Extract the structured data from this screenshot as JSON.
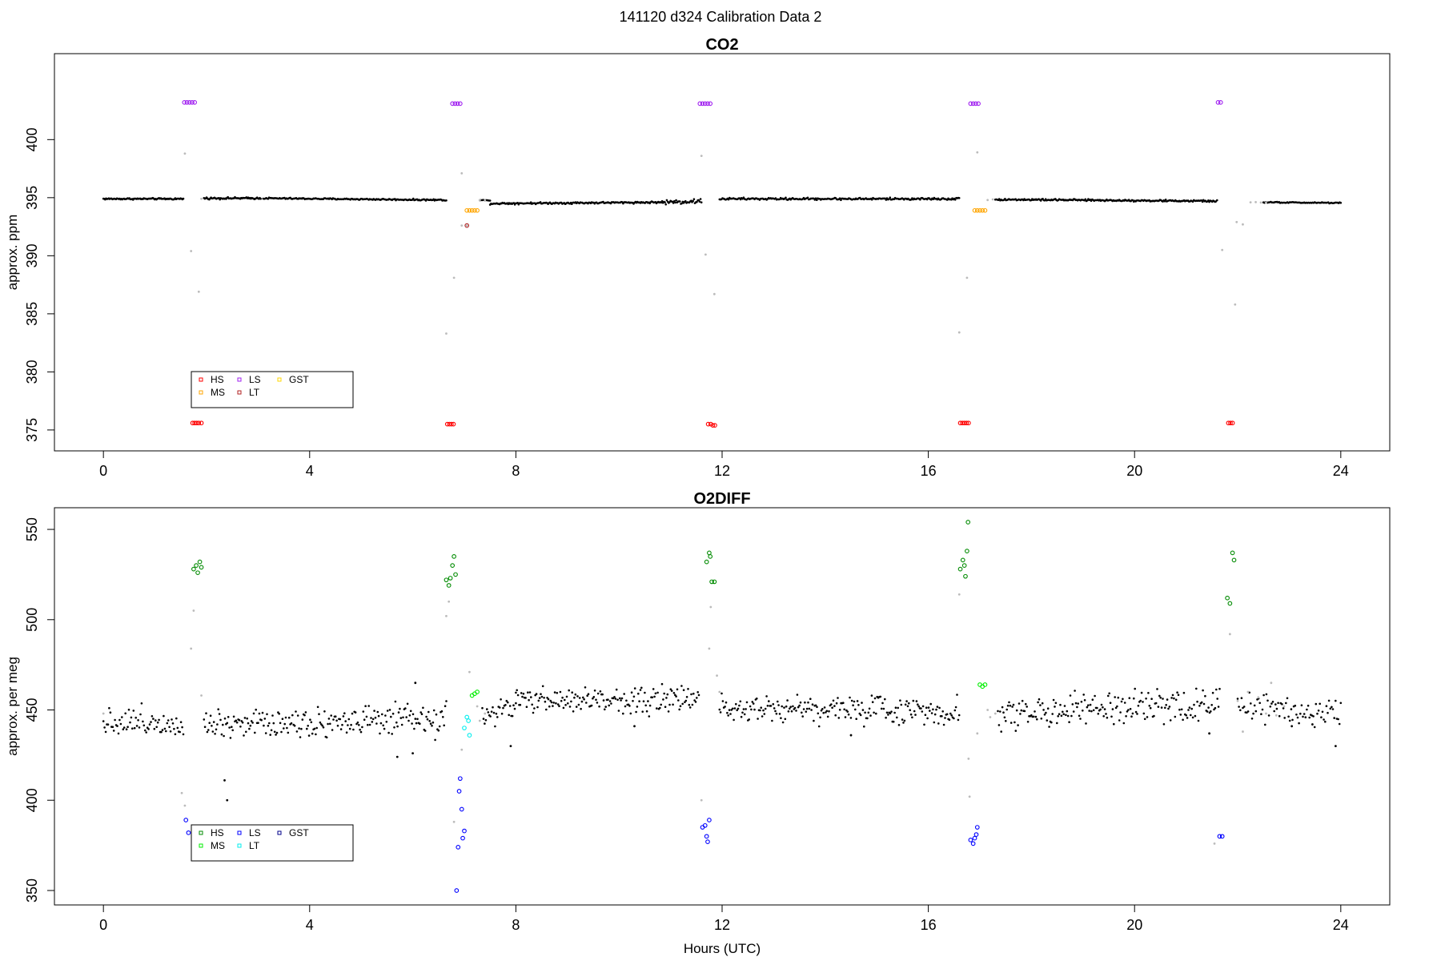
{
  "figure": {
    "title": "141120   d324   Calibration Data 2"
  },
  "chart_data": [
    {
      "type": "scatter",
      "title": "CO2",
      "xlabel": "",
      "ylabel": "approx. ppm",
      "xlim": [
        -0.95,
        24.95
      ],
      "ylim": [
        373.2,
        407.4
      ],
      "xticks": [
        0,
        4,
        8,
        12,
        16,
        20,
        24
      ],
      "yticks": [
        375,
        380,
        385,
        390,
        395,
        400
      ],
      "grid": false,
      "legend": {
        "placement": "bottom-left",
        "entries": [
          {
            "label": "HS",
            "color": "#ff0000"
          },
          {
            "label": "MS",
            "color": "#ffa500"
          },
          {
            "label": "LS",
            "color": "#a020f0"
          },
          {
            "label": "LT",
            "color": "#b22222"
          },
          {
            "label": "GST",
            "color": "#ffd700"
          }
        ]
      },
      "ambient": {
        "color": "#000000",
        "segments": [
          {
            "x0": 0.0,
            "x1": 1.55,
            "y0": 394.9,
            "y1": 394.9,
            "amp": 0.05,
            "n": 90
          },
          {
            "x0": 1.95,
            "x1": 3.05,
            "y0": 394.95,
            "y1": 394.95,
            "amp": 0.06,
            "n": 65
          },
          {
            "x0": 3.1,
            "x1": 6.65,
            "y0": 394.95,
            "y1": 394.8,
            "amp": 0.05,
            "n": 190
          },
          {
            "x0": 7.3,
            "x1": 7.5,
            "y0": 394.8,
            "y1": 394.75,
            "amp": 0.03,
            "n": 10
          },
          {
            "x0": 7.5,
            "x1": 10.8,
            "y0": 394.5,
            "y1": 394.6,
            "amp": 0.06,
            "n": 180
          },
          {
            "x0": 10.8,
            "x1": 11.6,
            "y0": 394.6,
            "y1": 394.7,
            "amp": 0.15,
            "n": 45
          },
          {
            "x0": 11.95,
            "x1": 16.6,
            "y0": 394.9,
            "y1": 394.9,
            "amp": 0.07,
            "n": 240
          },
          {
            "x0": 17.3,
            "x1": 21.6,
            "y0": 394.85,
            "y1": 394.7,
            "amp": 0.06,
            "n": 230
          },
          {
            "x0": 22.5,
            "x1": 24.0,
            "y0": 394.6,
            "y1": 394.55,
            "amp": 0.04,
            "n": 75
          }
        ]
      },
      "transition": {
        "color": "#bbbbbb",
        "points": [
          [
            1.58,
            398.8
          ],
          [
            1.7,
            390.4
          ],
          [
            1.85,
            386.9
          ],
          [
            1.9,
            394.9
          ],
          [
            6.8,
            388.1
          ],
          [
            6.65,
            383.3
          ],
          [
            6.95,
            397.1
          ],
          [
            6.95,
            392.6
          ],
          [
            7.05,
            392.6
          ],
          [
            7.3,
            394.8
          ],
          [
            7.4,
            394.75
          ],
          [
            11.6,
            398.6
          ],
          [
            11.68,
            390.1
          ],
          [
            11.85,
            386.7
          ],
          [
            16.6,
            383.4
          ],
          [
            16.75,
            388.1
          ],
          [
            16.95,
            398.9
          ],
          [
            17.15,
            394.8
          ],
          [
            17.25,
            394.85
          ],
          [
            21.7,
            390.5
          ],
          [
            21.95,
            385.8
          ],
          [
            21.98,
            392.9
          ],
          [
            22.1,
            392.7
          ],
          [
            22.25,
            394.6
          ],
          [
            22.35,
            394.62
          ],
          [
            22.45,
            394.58
          ],
          [
            22.55,
            394.6
          ]
        ]
      },
      "series": [
        {
          "name": "HS",
          "color": "#ff0000",
          "points": [
            [
              1.73,
              375.6
            ],
            [
              1.77,
              375.6
            ],
            [
              1.81,
              375.6
            ],
            [
              1.85,
              375.6
            ],
            [
              1.9,
              375.6
            ],
            [
              6.67,
              375.5
            ],
            [
              6.71,
              375.5
            ],
            [
              6.75,
              375.5
            ],
            [
              6.79,
              375.5
            ],
            [
              11.73,
              375.5
            ],
            [
              11.78,
              375.5
            ],
            [
              11.82,
              375.4
            ],
            [
              11.86,
              375.4
            ],
            [
              16.62,
              375.6
            ],
            [
              16.66,
              375.6
            ],
            [
              16.7,
              375.6
            ],
            [
              16.74,
              375.6
            ],
            [
              16.78,
              375.6
            ],
            [
              21.82,
              375.6
            ],
            [
              21.86,
              375.6
            ],
            [
              21.9,
              375.6
            ]
          ]
        },
        {
          "name": "MS",
          "color": "#ffa500",
          "points": [
            [
              7.05,
              393.9
            ],
            [
              7.1,
              393.9
            ],
            [
              7.15,
              393.9
            ],
            [
              7.2,
              393.9
            ],
            [
              7.25,
              393.9
            ],
            [
              16.9,
              393.9
            ],
            [
              16.95,
              393.9
            ],
            [
              17.0,
              393.9
            ],
            [
              17.05,
              393.9
            ],
            [
              17.1,
              393.9
            ]
          ]
        },
        {
          "name": "LS",
          "color": "#a020f0",
          "points": [
            [
              1.57,
              403.2
            ],
            [
              1.62,
              403.2
            ],
            [
              1.67,
              403.2
            ],
            [
              1.72,
              403.2
            ],
            [
              1.77,
              403.2
            ],
            [
              6.77,
              403.1
            ],
            [
              6.82,
              403.1
            ],
            [
              6.87,
              403.1
            ],
            [
              6.92,
              403.1
            ],
            [
              11.57,
              403.1
            ],
            [
              11.62,
              403.1
            ],
            [
              11.67,
              403.1
            ],
            [
              11.72,
              403.1
            ],
            [
              11.77,
              403.1
            ],
            [
              16.82,
              403.1
            ],
            [
              16.87,
              403.1
            ],
            [
              16.92,
              403.1
            ],
            [
              16.97,
              403.1
            ],
            [
              21.62,
              403.2
            ],
            [
              21.67,
              403.2
            ]
          ]
        },
        {
          "name": "LT",
          "color": "#b22222",
          "points": [
            [
              7.05,
              392.6
            ]
          ]
        },
        {
          "name": "GST",
          "color": "#ffd700",
          "points": []
        }
      ]
    },
    {
      "type": "scatter",
      "title": "O2DIFF",
      "xlabel": "Hours (UTC)",
      "ylabel": "approx. per meg",
      "xlim": [
        -0.95,
        24.95
      ],
      "ylim": [
        342.0,
        562.0
      ],
      "xticks": [
        0,
        4,
        8,
        12,
        16,
        20,
        24
      ],
      "yticks": [
        350,
        400,
        450,
        500,
        550
      ],
      "grid": false,
      "legend": {
        "placement": "bottom-left",
        "entries": [
          {
            "label": "HS",
            "color": "#008b00"
          },
          {
            "label": "MS",
            "color": "#00ee00"
          },
          {
            "label": "LS",
            "color": "#0000ff"
          },
          {
            "label": "LT",
            "color": "#00eeee"
          },
          {
            "label": "GST",
            "color": "#00008b"
          }
        ]
      },
      "ambient": {
        "color": "#000000",
        "segments": [
          {
            "x0": 0.0,
            "x1": 1.55,
            "y0": 444.0,
            "y1": 443.0,
            "amp": 6.0,
            "n": 70
          },
          {
            "x0": 1.95,
            "x1": 6.65,
            "y0": 443.0,
            "y1": 444.0,
            "amp": 6.5,
            "n": 220
          },
          {
            "x0": 7.35,
            "x1": 8.0,
            "y0": 447.0,
            "y1": 452.0,
            "amp": 5.0,
            "n": 30
          },
          {
            "x0": 8.0,
            "x1": 11.55,
            "y0": 455.0,
            "y1": 456.0,
            "amp": 5.5,
            "n": 170
          },
          {
            "x0": 11.95,
            "x1": 16.6,
            "y0": 452.0,
            "y1": 449.0,
            "amp": 6.0,
            "n": 220
          },
          {
            "x0": 17.35,
            "x1": 21.65,
            "y0": 448.0,
            "y1": 453.0,
            "amp": 6.5,
            "n": 200
          },
          {
            "x0": 22.0,
            "x1": 24.0,
            "y0": 452.0,
            "y1": 448.0,
            "amp": 6.5,
            "n": 80
          }
        ]
      },
      "outliers": [
        [
          2.35,
          411.0
        ],
        [
          2.4,
          400.0
        ],
        [
          5.7,
          424.0
        ],
        [
          6.0,
          426.0
        ],
        [
          6.05,
          465.0
        ],
        [
          7.9,
          430.0
        ],
        [
          10.3,
          441.0
        ],
        [
          14.5,
          436.0
        ],
        [
          21.45,
          437.0
        ],
        [
          23.05,
          441.0
        ],
        [
          23.45,
          442.0
        ],
        [
          23.9,
          430.0
        ]
      ],
      "transition": {
        "color": "#bbbbbb",
        "points": [
          [
            1.52,
            404.0
          ],
          [
            1.58,
            397.0
          ],
          [
            1.7,
            484.0
          ],
          [
            1.75,
            505.0
          ],
          [
            1.9,
            458.0
          ],
          [
            0.0,
            448.0
          ],
          [
            6.65,
            502.0
          ],
          [
            6.7,
            510.0
          ],
          [
            6.8,
            388.0
          ],
          [
            6.95,
            428.0
          ],
          [
            7.1,
            471.0
          ],
          [
            7.25,
            452.0
          ],
          [
            7.3,
            444.0
          ],
          [
            7.4,
            448.0
          ],
          [
            11.6,
            400.0
          ],
          [
            11.75,
            484.0
          ],
          [
            11.78,
            507.0
          ],
          [
            11.9,
            469.0
          ],
          [
            11.95,
            460.0
          ],
          [
            16.6,
            514.0
          ],
          [
            16.8,
            402.0
          ],
          [
            16.78,
            423.0
          ],
          [
            16.95,
            437.0
          ],
          [
            17.15,
            450.0
          ],
          [
            17.2,
            446.0
          ],
          [
            17.3,
            448.0
          ],
          [
            21.55,
            376.0
          ],
          [
            21.85,
            492.0
          ],
          [
            22.0,
            455.0
          ],
          [
            22.1,
            438.0
          ],
          [
            22.2,
            460.0
          ],
          [
            22.4,
            457.0
          ],
          [
            22.55,
            448.0
          ],
          [
            22.65,
            465.0
          ],
          [
            22.75,
            447.0
          ],
          [
            22.9,
            452.0
          ]
        ]
      },
      "series": [
        {
          "name": "HS",
          "color": "#008b00",
          "points": [
            [
              1.75,
              528.0
            ],
            [
              1.8,
              530.0
            ],
            [
              1.83,
              526.0
            ],
            [
              1.87,
              532.0
            ],
            [
              1.9,
              529.0
            ],
            [
              6.65,
              522.0
            ],
            [
              6.7,
              519.0
            ],
            [
              6.73,
              523.0
            ],
            [
              6.77,
              530.0
            ],
            [
              6.8,
              535.0
            ],
            [
              6.83,
              525.0
            ],
            [
              11.7,
              532.0
            ],
            [
              11.75,
              537.0
            ],
            [
              11.8,
              521.0
            ],
            [
              11.85,
              521.0
            ],
            [
              11.77,
              535.0
            ],
            [
              16.62,
              528.0
            ],
            [
              16.67,
              533.0
            ],
            [
              16.72,
              524.0
            ],
            [
              16.77,
              554.0
            ],
            [
              16.75,
              538.0
            ],
            [
              16.7,
              530.0
            ],
            [
              21.8,
              512.0
            ],
            [
              21.85,
              509.0
            ],
            [
              21.9,
              537.0
            ],
            [
              21.93,
              533.0
            ]
          ]
        },
        {
          "name": "MS",
          "color": "#00ee00",
          "points": [
            [
              7.15,
              458.0
            ],
            [
              7.2,
              459.0
            ],
            [
              7.25,
              460.0
            ],
            [
              17.0,
              464.0
            ],
            [
              17.05,
              463.0
            ],
            [
              17.1,
              464.0
            ]
          ]
        },
        {
          "name": "LS",
          "color": "#0000ff",
          "points": [
            [
              1.6,
              389.0
            ],
            [
              1.65,
              382.0
            ],
            [
              6.85,
              350.0
            ],
            [
              6.88,
              374.0
            ],
            [
              6.9,
              405.0
            ],
            [
              6.92,
              412.0
            ],
            [
              6.95,
              395.0
            ],
            [
              6.97,
              379.0
            ],
            [
              7.0,
              383.0
            ],
            [
              11.62,
              385.0
            ],
            [
              11.67,
              386.0
            ],
            [
              11.7,
              380.0
            ],
            [
              11.75,
              389.0
            ],
            [
              11.72,
              377.0
            ],
            [
              16.82,
              378.0
            ],
            [
              16.87,
              376.0
            ],
            [
              16.9,
              379.0
            ],
            [
              16.95,
              385.0
            ],
            [
              16.93,
              381.0
            ],
            [
              21.65,
              380.0
            ],
            [
              21.7,
              380.0
            ]
          ]
        },
        {
          "name": "LT",
          "color": "#00eeee",
          "points": [
            [
              7.0,
              440.0
            ],
            [
              7.05,
              446.0
            ],
            [
              7.08,
              444.0
            ],
            [
              7.1,
              436.0
            ]
          ]
        },
        {
          "name": "GST",
          "color": "#00008b",
          "points": []
        }
      ]
    }
  ]
}
